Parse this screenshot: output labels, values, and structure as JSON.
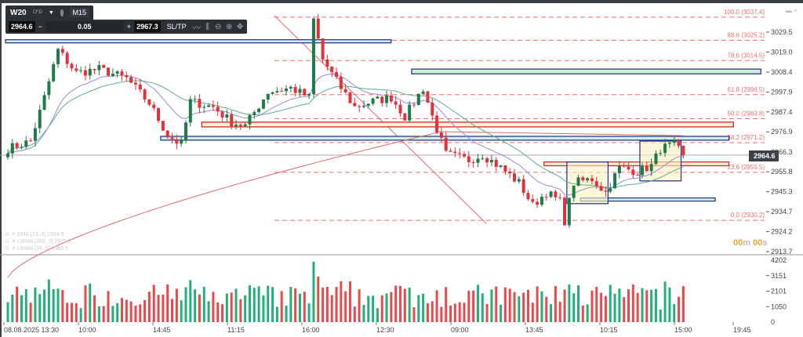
{
  "toolbar": {
    "symbol": "W20",
    "symbol_type": "CFD",
    "timeframe": "M15",
    "bid": "2964.6",
    "lot": "0.05",
    "ask": "2967.3",
    "sltp": "SL/TP",
    "minus": "−",
    "plus": "+"
  },
  "window": {
    "minimize": "▬",
    "close": "×"
  },
  "current_price": "2964.6",
  "timer": {
    "min": "00",
    "min_unit": "m",
    "sec": "00",
    "sec_unit": "s"
  },
  "legend": [
    "EMA [13, 0] 2964.9",
    "LWMA [200, 0] 2975.2",
    "LWMA [34, 0] 2960.6"
  ],
  "colors": {
    "up": "#1f7a4c",
    "down": "#e2313b",
    "vol_up": "#22b07a",
    "vol_down": "#e8494b",
    "fib": "#f07070",
    "zone_blue": "#2b3990",
    "zone_red": "#d0282e"
  },
  "chart_data": {
    "type": "candlestick",
    "price_axis": {
      "ticks": [
        "3029.5",
        "3019.0",
        "3008.4",
        "2997.9",
        "2987.4",
        "2976.9",
        "2966.3",
        "2955.8",
        "2945.3",
        "2934.7",
        "2924.2",
        "2913.7"
      ],
      "range": [
        2913.7,
        3040.0
      ]
    },
    "volume_axis": {
      "ticks": [
        "4202",
        "3151",
        "2101",
        "1050",
        "0"
      ],
      "range": [
        0,
        4202
      ]
    },
    "time_labels": [
      "08.08.2025 13:30",
      "10:00",
      "14:45",
      "11:15",
      "16:00",
      "12:30",
      "09:00",
      "13:45",
      "10:15",
      "15:00",
      "19:45"
    ],
    "close_waypoints": [
      [
        0,
        2968
      ],
      [
        5,
        2972
      ],
      [
        8,
        2995
      ],
      [
        11,
        3020
      ],
      [
        15,
        3008
      ],
      [
        20,
        3010
      ],
      [
        26,
        3005
      ],
      [
        31,
        2992
      ],
      [
        35,
        2975
      ],
      [
        38,
        2970
      ],
      [
        40,
        2993
      ],
      [
        45,
        2990
      ],
      [
        49,
        2982
      ],
      [
        52,
        2980
      ],
      [
        57,
        2998
      ],
      [
        62,
        3000
      ],
      [
        66,
        2995
      ],
      [
        67,
        3036
      ],
      [
        69,
        3015
      ],
      [
        73,
        3000
      ],
      [
        76,
        2990
      ],
      [
        80,
        2993
      ],
      [
        84,
        2995
      ],
      [
        87,
        2985
      ],
      [
        91,
        3000
      ],
      [
        93,
        2985
      ],
      [
        96,
        2965
      ],
      [
        101,
        2962
      ],
      [
        104,
        2965
      ],
      [
        108,
        2958
      ],
      [
        112,
        2950
      ],
      [
        115,
        2938
      ],
      [
        118,
        2945
      ],
      [
        121,
        2940
      ],
      [
        122,
        2930
      ],
      [
        124,
        2950
      ],
      [
        128,
        2952
      ],
      [
        131,
        2945
      ],
      [
        134,
        2958
      ],
      [
        138,
        2956
      ],
      [
        141,
        2959
      ],
      [
        143,
        2968
      ],
      [
        146,
        2970
      ],
      [
        148,
        2964.6
      ]
    ],
    "fib_levels": [
      {
        "label": "100.0 (3037.4)",
        "value": 3037.4
      },
      {
        "label": "88.6 (3025.2)",
        "value": 3025.2
      },
      {
        "label": "78.6 (3014.5)",
        "value": 3014.5
      },
      {
        "label": "61.8 (2996.5)",
        "value": 2996.5
      },
      {
        "label": "50.0 (2983.8)",
        "value": 2983.8
      },
      {
        "label": "38.2 (2971.2)",
        "value": 2971.2
      },
      {
        "label": "23.6 (2955.5)",
        "value": 2955.5
      },
      {
        "label": "0.0 (2930.2)",
        "value": 2930.2
      }
    ],
    "zones": [
      {
        "kind": "blue",
        "from": 0,
        "to": 84,
        "top": 3025.5,
        "bottom": 3024.0
      },
      {
        "kind": "blue",
        "from": 89,
        "to": 165,
        "top": 3010,
        "bottom": 3007.5
      },
      {
        "kind": "red",
        "from": 43,
        "to": 159,
        "top": 2982,
        "bottom": 2979.5
      },
      {
        "kind": "blue",
        "from": 34,
        "to": 158,
        "top": 2974.5,
        "bottom": 2972.5
      },
      {
        "kind": "red",
        "from": 118,
        "to": 158,
        "top": 2961,
        "bottom": 2959
      },
      {
        "kind": "blue",
        "from": 126,
        "to": 155,
        "top": 2942,
        "bottom": 2940.5
      }
    ],
    "boxes": [
      {
        "from": 123,
        "to": 131,
        "top": 2961,
        "bottom": 2939
      },
      {
        "from": 139,
        "to": 147,
        "top": 2972,
        "bottom": 2951
      }
    ]
  }
}
